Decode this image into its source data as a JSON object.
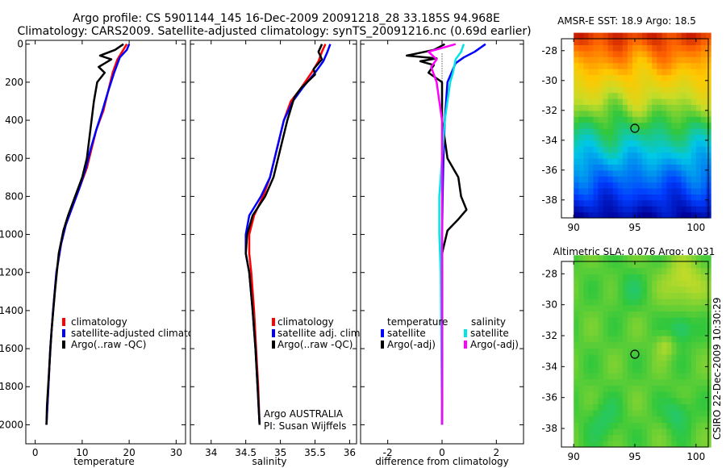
{
  "header": {
    "line1": "Argo profile: CS 5901144_145 16-Dec-2009 20091218_28 33.185S 94.968E",
    "line2": "Climatology: CARS2009. Satellite-adjusted climatology: synTS_20091216.nc (0.69d earlier)"
  },
  "side_label": "CSIRO 22-Dec-2009 10:30:29",
  "colors": {
    "red": "#ff0000",
    "blue": "#0000ff",
    "black": "#000000",
    "cyan": "#00e5e5",
    "magenta": "#ff00ff"
  },
  "chart_data": [
    {
      "type": "line",
      "name": "temperature-profile",
      "xlabel": "temperature",
      "ylabel": "",
      "xlim": [
        -2,
        32
      ],
      "ylim": [
        2100,
        -20
      ],
      "xticks": [
        0,
        10,
        20,
        30
      ],
      "yticks": [
        0,
        200,
        400,
        600,
        800,
        1000,
        1200,
        1400,
        1600,
        1800,
        2000
      ],
      "legend": [
        "climatology",
        "satellite-adjusted climatology",
        "Argo(..raw -QC)"
      ],
      "series": [
        {
          "name": "climatology",
          "color": "red",
          "points": [
            [
              19.5,
              0
            ],
            [
              18.5,
              40
            ],
            [
              17.5,
              80
            ],
            [
              16.5,
              150
            ],
            [
              15.5,
              250
            ],
            [
              14.5,
              350
            ],
            [
              13,
              450
            ],
            [
              12,
              550
            ],
            [
              11,
              650
            ],
            [
              9.5,
              750
            ],
            [
              8,
              850
            ],
            [
              6.5,
              950
            ],
            [
              5.5,
              1050
            ],
            [
              4.5,
              1200
            ],
            [
              3.8,
              1400
            ],
            [
              3.2,
              1600
            ],
            [
              2.8,
              1800
            ],
            [
              2.4,
              2000
            ]
          ]
        },
        {
          "name": "satellite-adjusted climatology",
          "color": "blue",
          "points": [
            [
              20,
              0
            ],
            [
              19.5,
              30
            ],
            [
              18,
              70
            ],
            [
              16.8,
              150
            ],
            [
              15.5,
              250
            ],
            [
              14.3,
              350
            ],
            [
              13,
              450
            ],
            [
              11.8,
              550
            ],
            [
              10.8,
              650
            ],
            [
              9.5,
              750
            ],
            [
              8,
              850
            ],
            [
              6.5,
              950
            ],
            [
              5.5,
              1050
            ],
            [
              4.5,
              1200
            ],
            [
              3.8,
              1400
            ],
            [
              3.2,
              1600
            ],
            [
              2.8,
              1800
            ],
            [
              2.4,
              2000
            ]
          ]
        },
        {
          "name": "Argo(..raw -QC)",
          "color": "black",
          "points": [
            [
              18.8,
              0
            ],
            [
              17,
              30
            ],
            [
              13.8,
              60
            ],
            [
              16.2,
              80
            ],
            [
              13.5,
              120
            ],
            [
              14.8,
              150
            ],
            [
              13.2,
              200
            ],
            [
              12.5,
              300
            ],
            [
              12,
              400
            ],
            [
              11.5,
              500
            ],
            [
              11,
              600
            ],
            [
              10,
              700
            ],
            [
              8.5,
              800
            ],
            [
              7,
              900
            ],
            [
              6,
              980
            ],
            [
              5,
              1100
            ],
            [
              4.2,
              1300
            ],
            [
              3.5,
              1500
            ],
            [
              3,
              1700
            ],
            [
              2.5,
              1900
            ],
            [
              2.4,
              2000
            ]
          ]
        }
      ]
    },
    {
      "type": "line",
      "name": "salinity-profile",
      "xlabel": "salinity",
      "xlim": [
        33.7,
        36.1
      ],
      "ylim": [
        2100,
        -20
      ],
      "xticks": [
        34,
        34.5,
        35,
        35.5,
        36
      ],
      "legend": [
        "climatology",
        "satellite adj. clim.",
        "Argo(..raw -QC)"
      ],
      "annotation": [
        "Argo AUSTRALIA",
        "PI: Susan Wijffels"
      ],
      "series": [
        {
          "name": "climatology",
          "color": "red",
          "points": [
            [
              35.65,
              0
            ],
            [
              35.6,
              40
            ],
            [
              35.55,
              90
            ],
            [
              35.45,
              150
            ],
            [
              35.3,
              230
            ],
            [
              35.15,
              300
            ],
            [
              35.05,
              400
            ],
            [
              34.95,
              550
            ],
            [
              34.85,
              700
            ],
            [
              34.75,
              800
            ],
            [
              34.62,
              900
            ],
            [
              34.55,
              1000
            ],
            [
              34.55,
              1100
            ],
            [
              34.58,
              1200
            ],
            [
              34.62,
              1400
            ],
            [
              34.65,
              1600
            ],
            [
              34.68,
              1800
            ],
            [
              34.7,
              2000
            ]
          ]
        },
        {
          "name": "satellite adj. clim.",
          "color": "blue",
          "points": [
            [
              35.72,
              0
            ],
            [
              35.68,
              40
            ],
            [
              35.62,
              90
            ],
            [
              35.5,
              150
            ],
            [
              35.32,
              230
            ],
            [
              35.18,
              300
            ],
            [
              35.05,
              400
            ],
            [
              34.95,
              550
            ],
            [
              34.85,
              700
            ],
            [
              34.72,
              800
            ],
            [
              34.55,
              900
            ],
            [
              34.5,
              1000
            ],
            [
              34.5,
              1100
            ],
            [
              34.55,
              1200
            ],
            [
              34.6,
              1400
            ],
            [
              34.64,
              1600
            ],
            [
              34.67,
              1800
            ],
            [
              34.7,
              2000
            ]
          ]
        },
        {
          "name": "Argo(..raw -QC)",
          "color": "black",
          "points": [
            [
              35.6,
              0
            ],
            [
              35.55,
              40
            ],
            [
              35.6,
              80
            ],
            [
              35.48,
              130
            ],
            [
              35.5,
              160
            ],
            [
              35.3,
              230
            ],
            [
              35.2,
              280
            ],
            [
              35.1,
              400
            ],
            [
              35,
              550
            ],
            [
              34.9,
              700
            ],
            [
              34.78,
              800
            ],
            [
              34.6,
              900
            ],
            [
              34.52,
              1000
            ],
            [
              34.5,
              1100
            ],
            [
              34.55,
              1200
            ],
            [
              34.6,
              1400
            ],
            [
              34.64,
              1600
            ],
            [
              34.67,
              1800
            ],
            [
              34.7,
              2000
            ]
          ]
        }
      ]
    },
    {
      "type": "line",
      "name": "difference-profile",
      "xlabel": "difference from climatology",
      "xlim": [
        -3,
        3
      ],
      "ylim": [
        2100,
        -20
      ],
      "xticks": [
        -2,
        0,
        2
      ],
      "legend_titles": [
        "temperature",
        "salinity"
      ],
      "legend": [
        "satellite",
        "Argo(-adj)",
        "satellite",
        "Argo(-adj)"
      ],
      "series": [
        {
          "name": "temperature satellite",
          "color": "blue",
          "points": [
            [
              1.6,
              0
            ],
            [
              1.2,
              40
            ],
            [
              0.8,
              70
            ],
            [
              0.5,
              100
            ],
            [
              0.2,
              200
            ],
            [
              0.1,
              400
            ],
            [
              0.05,
              600
            ],
            [
              0.02,
              800
            ],
            [
              0,
              1000
            ],
            [
              0,
              2000
            ]
          ]
        },
        {
          "name": "temperature Argo(-adj)",
          "color": "black",
          "points": [
            [
              0.1,
              0
            ],
            [
              -0.3,
              30
            ],
            [
              -1.3,
              60
            ],
            [
              -0.2,
              75
            ],
            [
              -0.8,
              90
            ],
            [
              -0.3,
              110
            ],
            [
              -0.5,
              150
            ],
            [
              0,
              200
            ],
            [
              0,
              300
            ],
            [
              0,
              400
            ],
            [
              0.1,
              500
            ],
            [
              0.2,
              600
            ],
            [
              0.6,
              700
            ],
            [
              0.7,
              800
            ],
            [
              0.9,
              870
            ],
            [
              0.6,
              920
            ],
            [
              0.2,
              980
            ],
            [
              0,
              1100
            ],
            [
              0,
              2000
            ]
          ]
        },
        {
          "name": "salinity satellite",
          "color": "cyan",
          "points": [
            [
              0.8,
              0
            ],
            [
              0.7,
              40
            ],
            [
              0.5,
              80
            ],
            [
              0.4,
              150
            ],
            [
              0.3,
              200
            ],
            [
              0.2,
              300
            ],
            [
              0.1,
              400
            ],
            [
              0,
              600
            ],
            [
              -0.1,
              800
            ],
            [
              -0.1,
              1000
            ],
            [
              -0.05,
              1200
            ],
            [
              0,
              2000
            ]
          ]
        },
        {
          "name": "salinity Argo(-adj)",
          "color": "magenta",
          "points": [
            [
              0.5,
              0
            ],
            [
              -0.5,
              40
            ],
            [
              -0.2,
              80
            ],
            [
              -0.4,
              120
            ],
            [
              -0.2,
              200
            ],
            [
              -0.1,
              300
            ],
            [
              0,
              400
            ],
            [
              0,
              2000
            ]
          ]
        }
      ]
    },
    {
      "type": "heatmap",
      "name": "sst-map",
      "title": "AMSR-E SST: 18.9 Argo: 18.5",
      "xlim": [
        89,
        101
      ],
      "ylim": [
        -39.2,
        -27.2
      ],
      "xticks": [
        90,
        95,
        100
      ],
      "yticks": [
        -28,
        -30,
        -32,
        -34,
        -36,
        -38
      ],
      "marker": [
        95,
        -33.2
      ]
    },
    {
      "type": "heatmap",
      "name": "sla-map",
      "title": "Altimetric SLA: 0.076 Argo: 0.031",
      "xlim": [
        89,
        101
      ],
      "ylim": [
        -39.2,
        -27.2
      ],
      "xticks": [
        90,
        95,
        100
      ],
      "yticks": [
        -28,
        -30,
        -32,
        -34,
        -36,
        -38
      ],
      "marker": [
        95,
        -33.2
      ]
    }
  ]
}
